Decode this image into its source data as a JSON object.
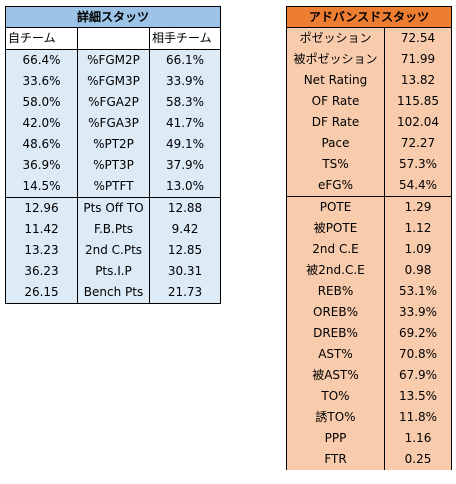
{
  "left": {
    "title": "詳細スタッツ",
    "header": {
      "own": "自チーム",
      "metric": "",
      "opp": "相手チーム"
    },
    "rows": [
      {
        "own": "66.4%",
        "metric": "%FGM2P",
        "opp": "66.1%"
      },
      {
        "own": "33.6%",
        "metric": "%FGM3P",
        "opp": "33.9%"
      },
      {
        "own": "58.0%",
        "metric": "%FGA2P",
        "opp": "58.3%"
      },
      {
        "own": "42.0%",
        "metric": "%FGA3P",
        "opp": "41.7%"
      },
      {
        "own": "48.6%",
        "metric": "%PT2P",
        "opp": "49.1%"
      },
      {
        "own": "36.9%",
        "metric": "%PT3P",
        "opp": "37.9%"
      },
      {
        "own": "14.5%",
        "metric": "%PTFT",
        "opp": "13.0%"
      },
      {
        "own": "12.96",
        "metric": "Pts Off TO",
        "opp": "12.88"
      },
      {
        "own": "11.42",
        "metric": "F.B.Pts",
        "opp": "9.42"
      },
      {
        "own": "13.23",
        "metric": "2nd C.Pts",
        "opp": "12.85"
      },
      {
        "own": "36.23",
        "metric": "Pts.I.P",
        "opp": "30.31"
      },
      {
        "own": "26.15",
        "metric": "Bench Pts",
        "opp": "21.73"
      }
    ]
  },
  "right": {
    "title": "アドバンスドスタッツ",
    "rows": [
      {
        "label": "ポゼッション",
        "value": "72.54"
      },
      {
        "label": "被ポゼッション",
        "value": "71.99"
      },
      {
        "label": "Net Rating",
        "value": "13.82"
      },
      {
        "label": "OF Rate",
        "value": "115.85"
      },
      {
        "label": "DF Rate",
        "value": "102.04"
      },
      {
        "label": "Pace",
        "value": "72.27"
      },
      {
        "label": "TS%",
        "value": "57.3%"
      },
      {
        "label": "eFG%",
        "value": "54.4%"
      },
      {
        "label": "POTE",
        "value": "1.29"
      },
      {
        "label": "被POTE",
        "value": "1.12"
      },
      {
        "label": "2nd C.E",
        "value": "1.09"
      },
      {
        "label": "被2nd.C.E",
        "value": "0.98"
      },
      {
        "label": "REB%",
        "value": "53.1%"
      },
      {
        "label": "OREB%",
        "value": "33.9%"
      },
      {
        "label": "DREB%",
        "value": "69.2%"
      },
      {
        "label": "AST%",
        "value": "70.8%"
      },
      {
        "label": "被AST%",
        "value": "67.9%"
      },
      {
        "label": "TO%",
        "value": "13.5%"
      },
      {
        "label": "誘TO%",
        "value": "11.8%"
      },
      {
        "label": "PPP",
        "value": "1.16"
      },
      {
        "label": "FTR",
        "value": "0.25"
      }
    ]
  }
}
